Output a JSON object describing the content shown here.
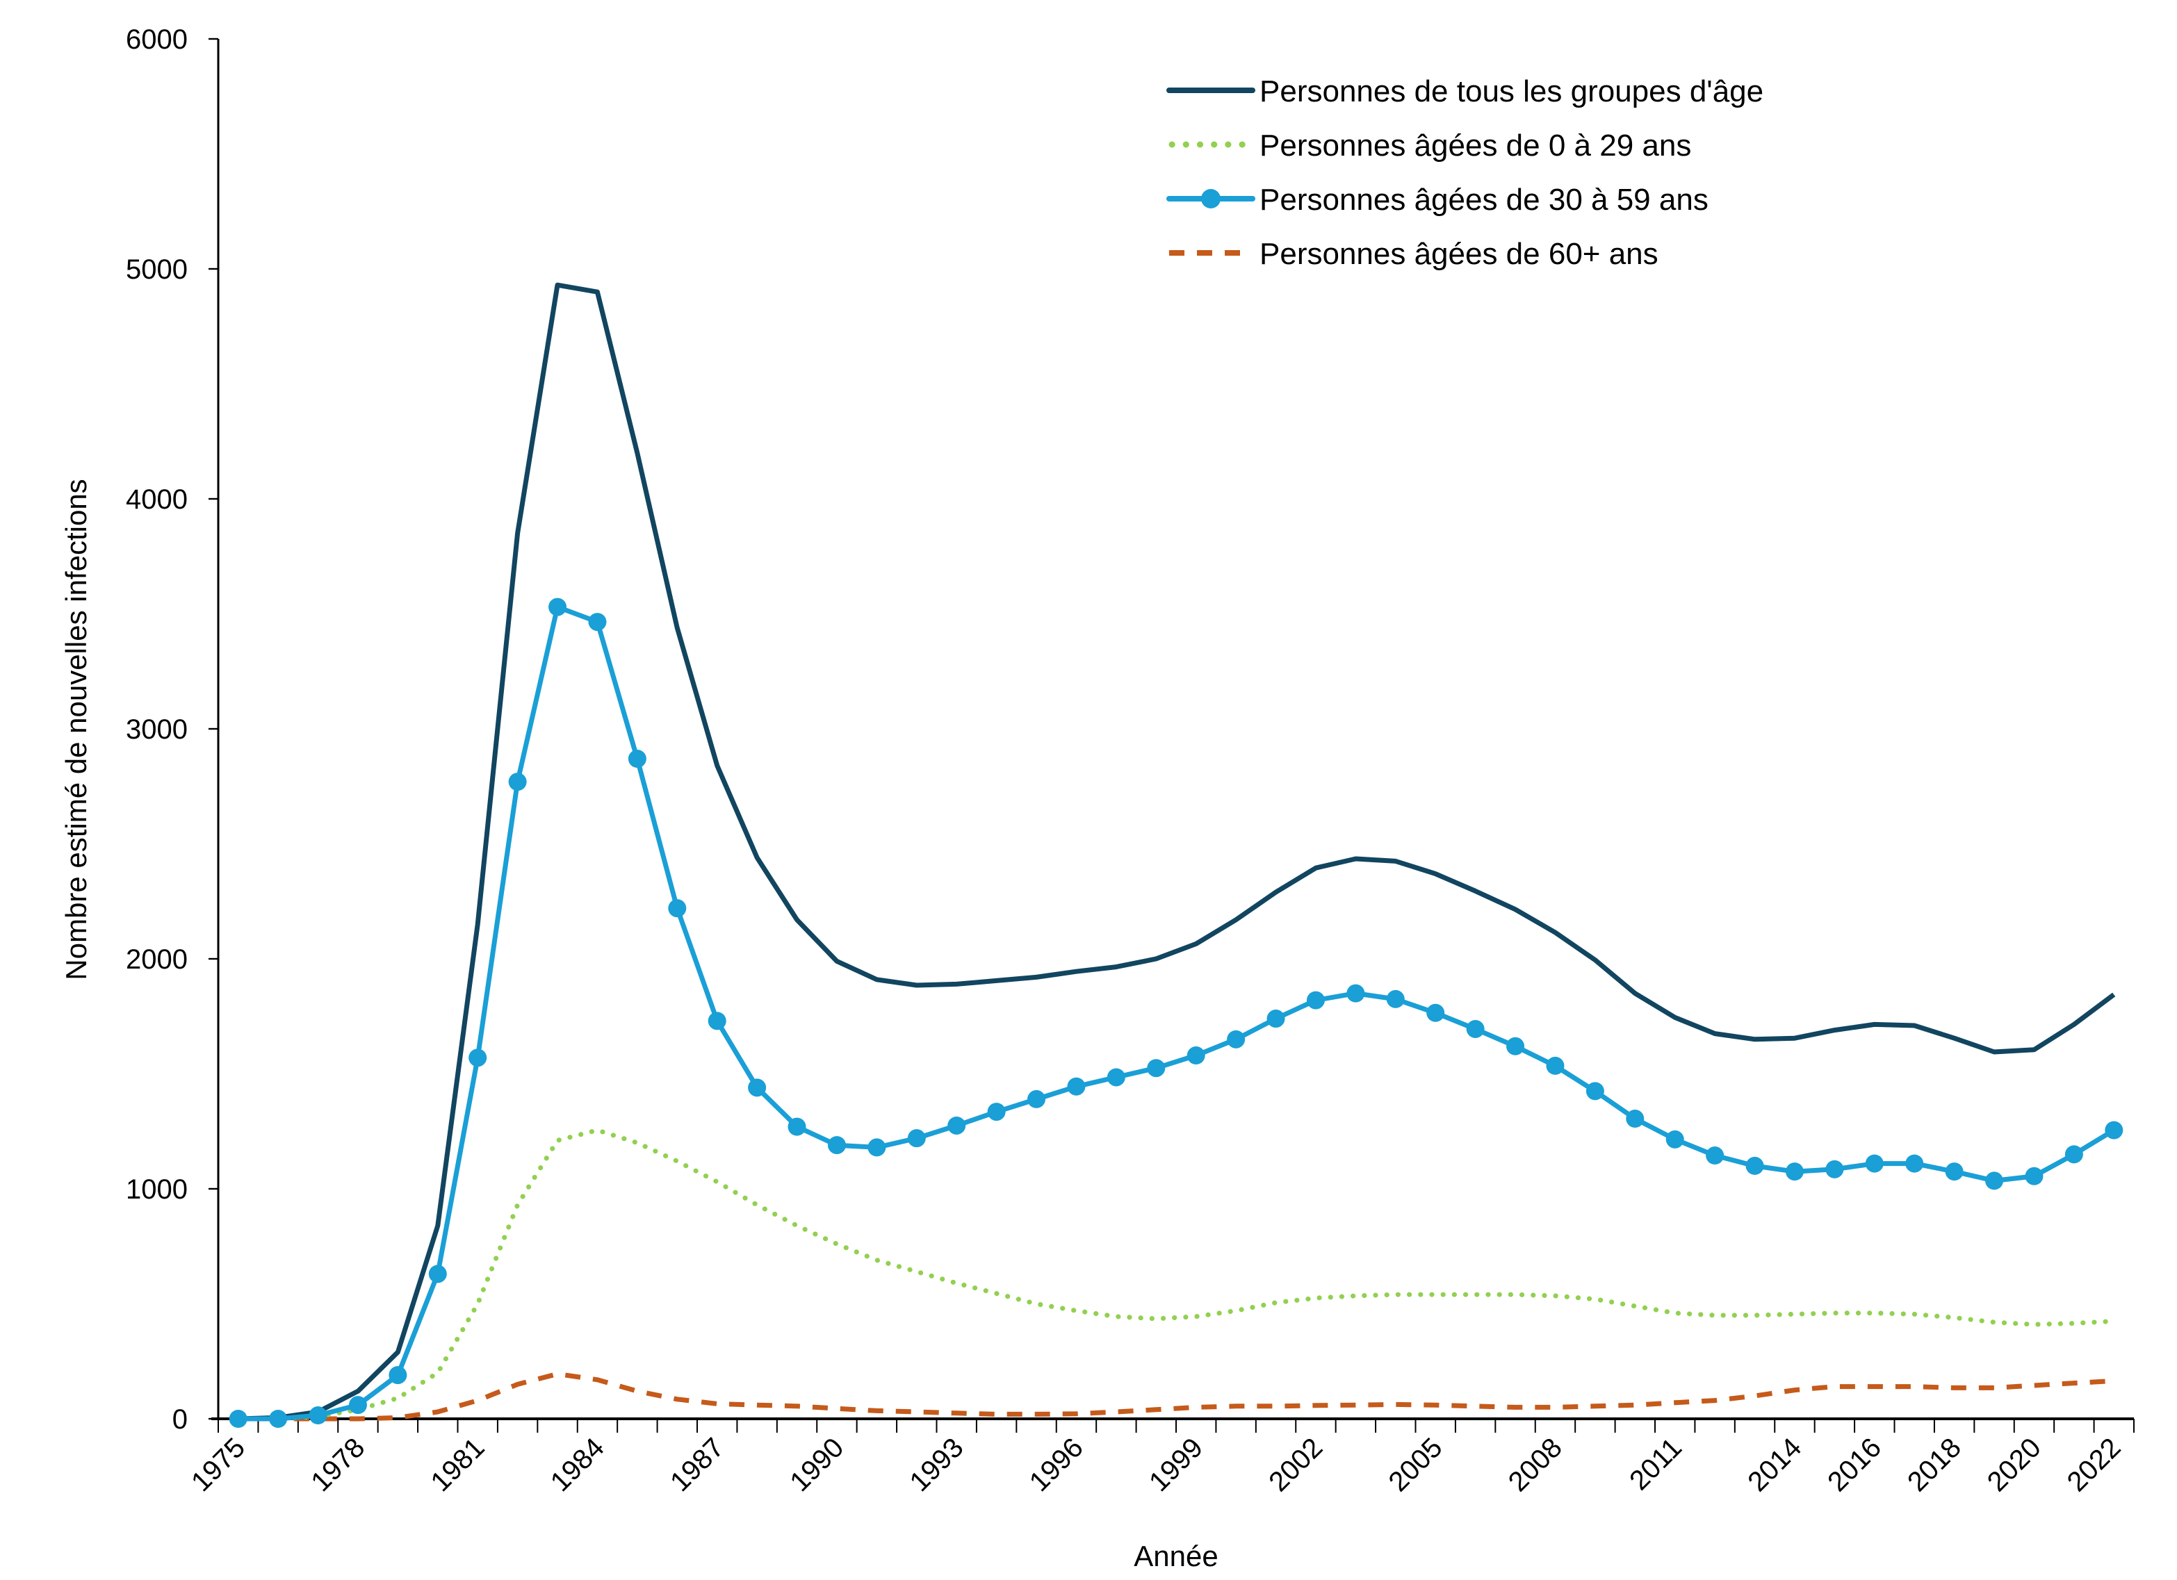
{
  "chart_data": {
    "type": "line",
    "title": "",
    "xlabel": "Année",
    "ylabel": "Nombre estimé de nouvelles infections",
    "ylim": [
      0,
      6000
    ],
    "yticks": [
      0,
      1000,
      2000,
      3000,
      4000,
      5000,
      6000
    ],
    "grid": false,
    "legend_position": "top-right",
    "x": [
      1975,
      1976,
      1977,
      1978,
      1979,
      1980,
      1981,
      1982,
      1983,
      1984,
      1985,
      1986,
      1987,
      1988,
      1989,
      1990,
      1991,
      1992,
      1993,
      1994,
      1995,
      1996,
      1997,
      1998,
      1999,
      2000,
      2001,
      2002,
      2003,
      2004,
      2005,
      2006,
      2007,
      2008,
      2009,
      2010,
      2011,
      2012,
      2013,
      2014,
      2015,
      2016,
      2017,
      2018,
      2019,
      2020,
      2021,
      2022
    ],
    "xtick_labels": [
      "1975",
      "1978",
      "1981",
      "1984",
      "1987",
      "1990",
      "1993",
      "1996",
      "1999",
      "2002",
      "2005",
      "2008",
      "2011",
      "2014",
      "2016",
      "2018",
      "2020",
      "2022"
    ],
    "series": [
      {
        "name": "Personnes de tous les groupes d'âge",
        "color": "#114560",
        "style": "solid",
        "values": [
          0,
          5,
          30,
          120,
          290,
          840,
          2150,
          3850,
          4930,
          4900,
          4200,
          3440,
          2840,
          2440,
          2170,
          1990,
          1910,
          1885,
          1890,
          1905,
          1920,
          1945,
          1965,
          2000,
          2065,
          2170,
          2290,
          2395,
          2435,
          2425,
          2370,
          2295,
          2215,
          2115,
          1995,
          1850,
          1745,
          1675,
          1650,
          1655,
          1690,
          1715,
          1710,
          1655,
          1595,
          1605,
          1715,
          1845
        ]
      },
      {
        "name": "Personnes âgées de 0 à 29 ans",
        "color": "#92d050",
        "style": "dotted",
        "values": [
          0,
          0,
          10,
          40,
          90,
          200,
          500,
          930,
          1210,
          1255,
          1200,
          1120,
          1030,
          930,
          840,
          760,
          690,
          640,
          590,
          545,
          500,
          470,
          445,
          435,
          445,
          470,
          505,
          525,
          535,
          540,
          540,
          540,
          540,
          535,
          520,
          490,
          460,
          450,
          450,
          455,
          460,
          460,
          455,
          440,
          420,
          410,
          415,
          425
        ]
      },
      {
        "name": "Personnes âgées de 30 à 59 ans",
        "color": "#1a9fd6",
        "style": "markers",
        "values": [
          0,
          0,
          15,
          60,
          190,
          630,
          1570,
          2770,
          3530,
          3465,
          2870,
          2220,
          1730,
          1440,
          1270,
          1190,
          1180,
          1220,
          1275,
          1335,
          1390,
          1445,
          1485,
          1525,
          1580,
          1650,
          1740,
          1820,
          1850,
          1825,
          1765,
          1695,
          1620,
          1535,
          1425,
          1305,
          1215,
          1145,
          1100,
          1075,
          1085,
          1110,
          1110,
          1075,
          1035,
          1055,
          1150,
          1255
        ]
      },
      {
        "name": "Personnes âgées de 60+ ans",
        "color": "#c55a1a",
        "style": "dashed",
        "values": [
          0,
          0,
          0,
          0,
          5,
          30,
          80,
          150,
          195,
          170,
          120,
          85,
          65,
          60,
          55,
          45,
          35,
          30,
          25,
          20,
          20,
          22,
          30,
          40,
          50,
          55,
          55,
          58,
          60,
          62,
          60,
          55,
          50,
          50,
          55,
          60,
          70,
          80,
          100,
          125,
          140,
          140,
          140,
          135,
          135,
          145,
          155,
          165
        ]
      }
    ]
  }
}
